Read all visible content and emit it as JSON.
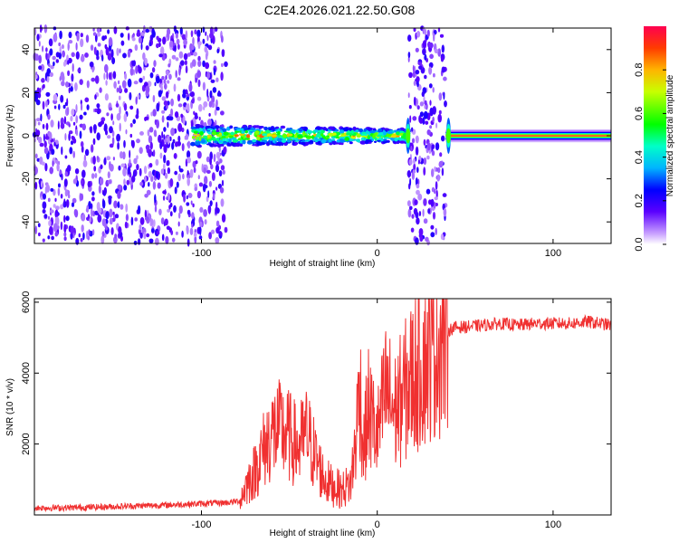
{
  "title": "C2E4.2026.021.22.50.G08",
  "colors": {
    "background": "#ffffff",
    "snr_line": "#f03030",
    "noise": "#7a3ae8",
    "axis": "#000000"
  },
  "colorbar": {
    "label": "Normalized spectral amplitude",
    "range": [
      0,
      1
    ],
    "ticks": [
      {
        "value": 0.0,
        "label": "0.0"
      },
      {
        "value": 0.2,
        "label": "0.2"
      },
      {
        "value": 0.4,
        "label": "0.4"
      },
      {
        "value": 0.6,
        "label": "0.6"
      },
      {
        "value": 0.8,
        "label": "0.8"
      }
    ]
  },
  "chart_data": [
    {
      "type": "heatmap",
      "xlabel": "Height of straight line (km)",
      "ylabel": "Frequency (Hz)",
      "xlim": [
        -195,
        133
      ],
      "ylim": [
        -50,
        50
      ],
      "xticks": [
        {
          "value": -100,
          "label": "-100"
        },
        {
          "value": 0,
          "label": "0"
        },
        {
          "value": 100,
          "label": "100"
        }
      ],
      "yticks": [
        {
          "value": -40,
          "label": "-40"
        },
        {
          "value": -20,
          "label": "-20"
        },
        {
          "value": 0,
          "label": "0"
        },
        {
          "value": 20,
          "label": "20"
        },
        {
          "value": 40,
          "label": "40"
        }
      ],
      "regions": [
        {
          "kind": "noise",
          "x": [
            -195,
            -86
          ],
          "amplitude": 0.2
        },
        {
          "kind": "signal_scattered",
          "x": [
            -105,
            18
          ],
          "freq_center": 0,
          "freq_halfwidth": 5,
          "amplitude": 0.5
        },
        {
          "kind": "noise",
          "x": [
            18,
            39
          ],
          "amplitude": 0.2
        },
        {
          "kind": "signal_tone",
          "x": [
            39,
            133
          ],
          "freq_center": 0,
          "freq_halfwidth": 3,
          "amplitude": 1.0
        }
      ]
    },
    {
      "type": "line",
      "xlabel": "Height of straight line (km)",
      "ylabel": "SNR (10 * v/v)",
      "xlim": [
        -195,
        133
      ],
      "ylim": [
        0,
        6100
      ],
      "xticks": [
        {
          "value": -100,
          "label": "-100"
        },
        {
          "value": 0,
          "label": "0"
        },
        {
          "value": 100,
          "label": "100"
        }
      ],
      "yticks": [
        {
          "value": 2000,
          "label": "2000"
        },
        {
          "value": 4000,
          "label": "4000"
        },
        {
          "value": 6000,
          "label": "6000"
        }
      ],
      "series": [
        {
          "x": [
            -195,
            -180,
            -160,
            -140,
            -120,
            -100,
            -85,
            -78,
            -75,
            -70,
            -65,
            -60,
            -55,
            -50,
            -45,
            -40,
            -35,
            -30,
            -25,
            -20,
            -15,
            -12,
            -10,
            -8,
            -5,
            0,
            5,
            10,
            15,
            20,
            25,
            30,
            35,
            40,
            45,
            50,
            60,
            70,
            80,
            90,
            100,
            110,
            120,
            133
          ],
          "y": [
            200,
            200,
            220,
            250,
            280,
            320,
            350,
            400,
            800,
            1200,
            1800,
            2300,
            2400,
            2200,
            1900,
            2300,
            1600,
            1000,
            800,
            700,
            900,
            2200,
            3800,
            1800,
            3000,
            2200,
            3500,
            2900,
            3400,
            3900,
            4300,
            4700,
            5000,
            5200,
            5300,
            5300,
            5350,
            5400,
            5350,
            5400,
            5400,
            5400,
            5450,
            5350
          ]
        }
      ]
    }
  ]
}
